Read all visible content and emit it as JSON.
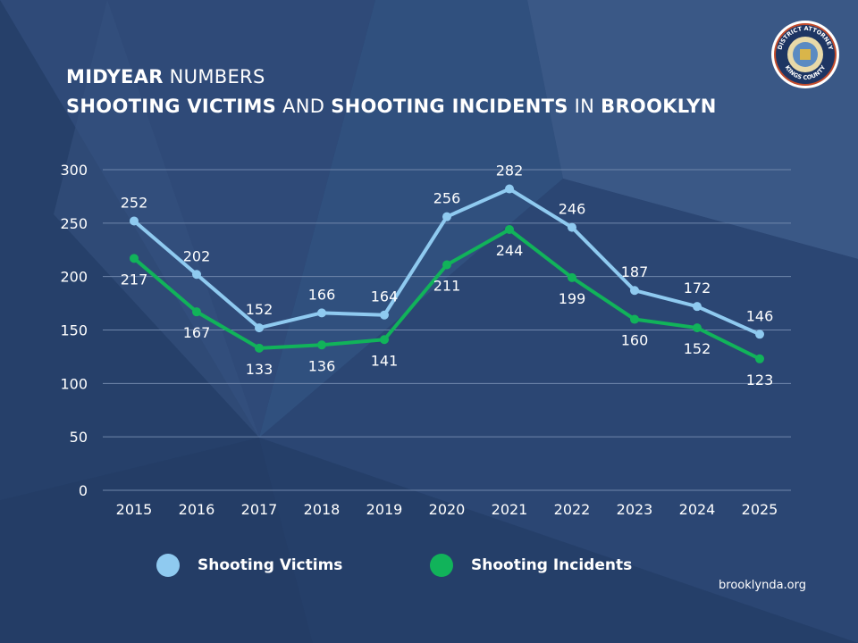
{
  "title": {
    "line1_bold": "MIDYEAR",
    "line1_rest": " NUMBERS",
    "line2_bold1": "SHOOTING VICTIMS",
    "line2_mid": " AND ",
    "line2_bold2": "SHOOTING INCIDENTS",
    "line2_in": " IN ",
    "line2_bold3": "BROOKLYN"
  },
  "seal": {
    "top_text": "DISTRICT ATTORNEY",
    "bottom_text": "KINGS COUNTY"
  },
  "website": "brooklynda.org",
  "colors": {
    "background": "#2a4470",
    "victims": "#8fcaf0",
    "incidents": "#11b35a",
    "grid": "#6f86ab",
    "text": "#ffffff"
  },
  "chart_data": {
    "type": "line",
    "title": "MIDYEAR NUMBERS SHOOTING VICTIMS AND SHOOTING INCIDENTS IN BROOKLYN",
    "xlabel": "",
    "ylabel": "",
    "categories": [
      "2015",
      "2016",
      "2017",
      "2018",
      "2019",
      "2020",
      "2021",
      "2022",
      "2023",
      "2024",
      "2025"
    ],
    "ylim": [
      0,
      300
    ],
    "yticks": [
      0,
      50,
      100,
      150,
      200,
      250,
      300
    ],
    "grid": true,
    "legend_position": "bottom",
    "series": [
      {
        "name": "Shooting Victims",
        "color": "#8fcaf0",
        "values": [
          252,
          202,
          152,
          166,
          164,
          256,
          282,
          246,
          187,
          172,
          146
        ],
        "label_pos": [
          "above",
          "above",
          "above",
          "above",
          "above",
          "above",
          "above",
          "above",
          "above",
          "above",
          "above"
        ]
      },
      {
        "name": "Shooting Incidents",
        "color": "#11b35a",
        "values": [
          217,
          167,
          133,
          136,
          141,
          211,
          244,
          199,
          160,
          152,
          123
        ],
        "label_pos": [
          "below",
          "below",
          "below",
          "below",
          "below",
          "below",
          "below",
          "below",
          "below",
          "below",
          "below"
        ]
      }
    ]
  }
}
